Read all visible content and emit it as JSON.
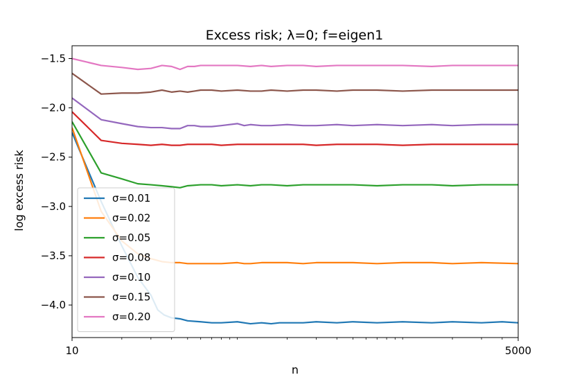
{
  "chart_data": {
    "type": "line",
    "title": "Excess risk; λ=0;  f=eigen1",
    "xlabel": "n",
    "ylabel": "log excess risk",
    "xscale": "log",
    "xlim": [
      10,
      5000
    ],
    "ylim": [
      -4.33,
      -1.37
    ],
    "xticks": [
      10,
      5000
    ],
    "xtick_labels": [
      "10",
      "5000"
    ],
    "yticks": [
      -1.5,
      -2.0,
      -2.5,
      -3.0,
      -3.5,
      -4.0
    ],
    "ytick_labels": [
      "−1.5",
      "−2.0",
      "−2.5",
      "−3.0",
      "−3.5",
      "−4.0"
    ],
    "grid": false,
    "legend_position": "lower-left",
    "series": [
      {
        "name": "σ=0.01",
        "color": "#1f77b4",
        "x": [
          10,
          15,
          20,
          25,
          30,
          33,
          36,
          40,
          45,
          50,
          60,
          70,
          80,
          100,
          120,
          140,
          160,
          180,
          200,
          250,
          300,
          400,
          500,
          700,
          1000,
          1500,
          2000,
          3000,
          4000,
          5000
        ],
        "y": [
          -2.25,
          -2.95,
          -3.4,
          -3.72,
          -3.9,
          -4.05,
          -4.1,
          -4.13,
          -4.14,
          -4.16,
          -4.17,
          -4.18,
          -4.18,
          -4.17,
          -4.19,
          -4.18,
          -4.19,
          -4.18,
          -4.18,
          -4.18,
          -4.17,
          -4.18,
          -4.17,
          -4.18,
          -4.17,
          -4.18,
          -4.17,
          -4.18,
          -4.17,
          -4.18
        ]
      },
      {
        "name": "σ=0.02",
        "color": "#ff7f0e",
        "x": [
          10,
          15,
          20,
          25,
          30,
          35,
          40,
          45,
          50,
          60,
          70,
          80,
          100,
          110,
          120,
          140,
          160,
          200,
          250,
          300,
          400,
          500,
          700,
          1000,
          1500,
          2000,
          3000,
          5000
        ],
        "y": [
          -2.2,
          -3.05,
          -3.35,
          -3.48,
          -3.53,
          -3.56,
          -3.57,
          -3.57,
          -3.58,
          -3.58,
          -3.58,
          -3.58,
          -3.57,
          -3.58,
          -3.58,
          -3.57,
          -3.57,
          -3.57,
          -3.58,
          -3.57,
          -3.57,
          -3.57,
          -3.58,
          -3.57,
          -3.57,
          -3.58,
          -3.57,
          -3.58
        ]
      },
      {
        "name": "σ=0.05",
        "color": "#2ca02c",
        "x": [
          10,
          15,
          20,
          25,
          30,
          35,
          40,
          45,
          50,
          60,
          70,
          80,
          100,
          120,
          140,
          160,
          200,
          250,
          300,
          400,
          500,
          700,
          1000,
          1500,
          2000,
          3000,
          5000
        ],
        "y": [
          -2.14,
          -2.66,
          -2.72,
          -2.77,
          -2.78,
          -2.79,
          -2.8,
          -2.81,
          -2.79,
          -2.78,
          -2.78,
          -2.79,
          -2.78,
          -2.79,
          -2.78,
          -2.78,
          -2.79,
          -2.78,
          -2.78,
          -2.78,
          -2.78,
          -2.79,
          -2.78,
          -2.78,
          -2.79,
          -2.78,
          -2.78
        ]
      },
      {
        "name": "σ=0.08",
        "color": "#d62728",
        "x": [
          10,
          15,
          20,
          25,
          30,
          35,
          40,
          45,
          50,
          60,
          70,
          80,
          100,
          120,
          140,
          160,
          200,
          250,
          300,
          400,
          500,
          700,
          1000,
          1500,
          2000,
          3000,
          5000
        ],
        "y": [
          -2.04,
          -2.33,
          -2.36,
          -2.37,
          -2.38,
          -2.37,
          -2.38,
          -2.38,
          -2.37,
          -2.37,
          -2.37,
          -2.38,
          -2.37,
          -2.37,
          -2.37,
          -2.37,
          -2.37,
          -2.37,
          -2.38,
          -2.37,
          -2.37,
          -2.37,
          -2.38,
          -2.37,
          -2.37,
          -2.37,
          -2.37
        ]
      },
      {
        "name": "σ=0.10",
        "color": "#9467bd",
        "x": [
          10,
          15,
          20,
          25,
          30,
          35,
          40,
          45,
          50,
          55,
          60,
          70,
          80,
          100,
          110,
          120,
          140,
          160,
          200,
          250,
          300,
          400,
          500,
          700,
          1000,
          1500,
          2000,
          3000,
          5000
        ],
        "y": [
          -1.9,
          -2.12,
          -2.16,
          -2.19,
          -2.2,
          -2.2,
          -2.21,
          -2.21,
          -2.18,
          -2.18,
          -2.19,
          -2.19,
          -2.18,
          -2.16,
          -2.18,
          -2.17,
          -2.18,
          -2.18,
          -2.17,
          -2.18,
          -2.18,
          -2.17,
          -2.18,
          -2.17,
          -2.18,
          -2.17,
          -2.18,
          -2.17,
          -2.17
        ]
      },
      {
        "name": "σ=0.15",
        "color": "#8c564b",
        "x": [
          10,
          15,
          20,
          25,
          30,
          35,
          40,
          45,
          50,
          55,
          60,
          70,
          80,
          100,
          120,
          140,
          160,
          200,
          250,
          300,
          400,
          500,
          700,
          1000,
          1500,
          2000,
          3000,
          5000
        ],
        "y": [
          -1.65,
          -1.86,
          -1.85,
          -1.85,
          -1.84,
          -1.82,
          -1.84,
          -1.83,
          -1.84,
          -1.83,
          -1.82,
          -1.82,
          -1.83,
          -1.82,
          -1.83,
          -1.83,
          -1.82,
          -1.83,
          -1.82,
          -1.82,
          -1.83,
          -1.82,
          -1.82,
          -1.83,
          -1.82,
          -1.82,
          -1.82,
          -1.82
        ]
      },
      {
        "name": "σ=0.20",
        "color": "#e377c2",
        "x": [
          10,
          15,
          20,
          25,
          30,
          35,
          40,
          45,
          50,
          55,
          60,
          70,
          80,
          100,
          120,
          140,
          160,
          200,
          250,
          300,
          400,
          500,
          700,
          1000,
          1500,
          2000,
          3000,
          5000
        ],
        "y": [
          -1.5,
          -1.57,
          -1.59,
          -1.61,
          -1.6,
          -1.57,
          -1.58,
          -1.61,
          -1.58,
          -1.58,
          -1.57,
          -1.57,
          -1.57,
          -1.57,
          -1.58,
          -1.57,
          -1.58,
          -1.57,
          -1.57,
          -1.58,
          -1.57,
          -1.57,
          -1.57,
          -1.57,
          -1.58,
          -1.57,
          -1.57,
          -1.57
        ]
      }
    ]
  }
}
